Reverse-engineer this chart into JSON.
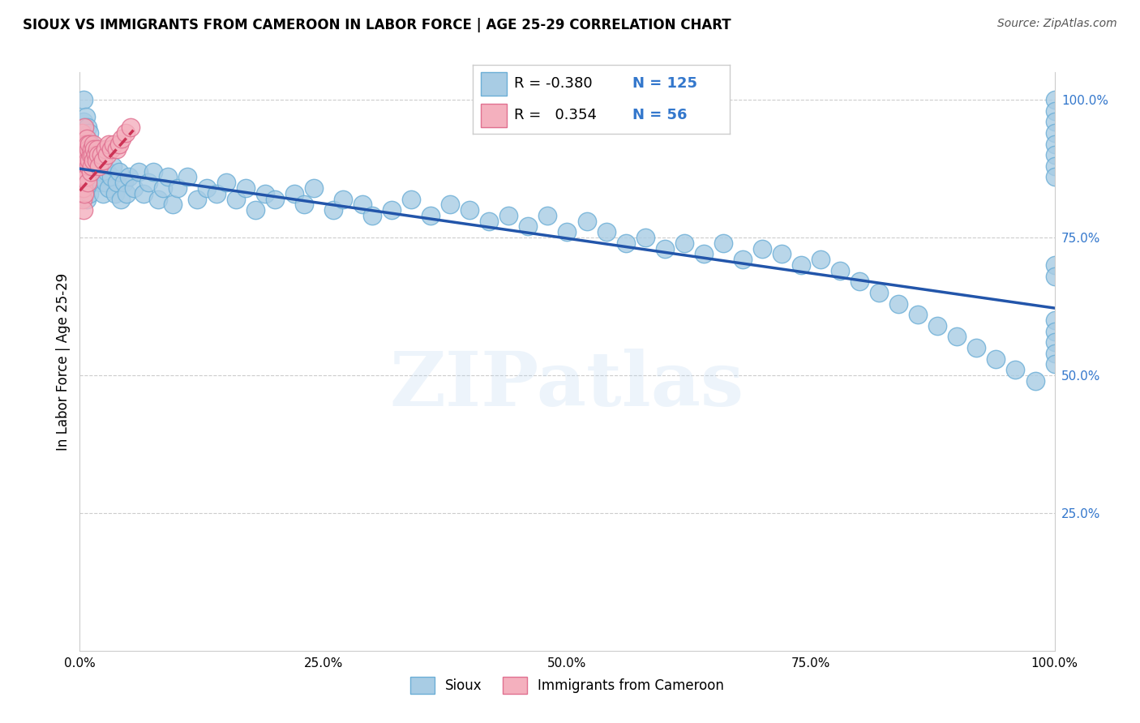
{
  "title": "SIOUX VS IMMIGRANTS FROM CAMEROON IN LABOR FORCE | AGE 25-29 CORRELATION CHART",
  "source": "Source: ZipAtlas.com",
  "ylabel": "In Labor Force | Age 25-29",
  "xlim": [
    0.0,
    1.0
  ],
  "ylim": [
    0.0,
    1.05
  ],
  "xtick_labels": [
    "0.0%",
    "25.0%",
    "50.0%",
    "75.0%",
    "100.0%"
  ],
  "xtick_vals": [
    0.0,
    0.25,
    0.5,
    0.75,
    1.0
  ],
  "ytick_labels_right": [
    "100.0%",
    "75.0%",
    "50.0%",
    "25.0%"
  ],
  "ytick_vals_right": [
    1.0,
    0.75,
    0.5,
    0.25
  ],
  "legend_label1": "Sioux",
  "legend_label2": "Immigrants from Cameroon",
  "r1": -0.38,
  "n1": 125,
  "r2": 0.354,
  "n2": 56,
  "blue_color": "#a8cce4",
  "blue_edge": "#6baed6",
  "pink_color": "#f4b0be",
  "pink_edge": "#e07090",
  "trendline1_color": "#2255aa",
  "trendline2_color": "#cc3355",
  "right_tick_color": "#3377cc",
  "grid_color": "#cccccc",
  "background_color": "#ffffff",
  "watermark_text": "ZIPatlas",
  "trendline1_y0": 0.875,
  "trendline1_y1": 0.622,
  "trendline2_x0": 0.0,
  "trendline2_x1": 0.055,
  "trendline2_y0": 0.835,
  "trendline2_y1": 0.945,
  "sioux_x": [
    0.002,
    0.003,
    0.004,
    0.004,
    0.005,
    0.005,
    0.005,
    0.006,
    0.006,
    0.007,
    0.007,
    0.007,
    0.008,
    0.008,
    0.009,
    0.009,
    0.01,
    0.01,
    0.01,
    0.011,
    0.011,
    0.012,
    0.012,
    0.013,
    0.014,
    0.014,
    0.015,
    0.016,
    0.017,
    0.018,
    0.019,
    0.02,
    0.021,
    0.022,
    0.023,
    0.024,
    0.025,
    0.026,
    0.028,
    0.03,
    0.032,
    0.034,
    0.036,
    0.038,
    0.04,
    0.042,
    0.045,
    0.048,
    0.05,
    0.055,
    0.06,
    0.065,
    0.07,
    0.075,
    0.08,
    0.085,
    0.09,
    0.095,
    0.1,
    0.11,
    0.12,
    0.13,
    0.14,
    0.15,
    0.16,
    0.17,
    0.18,
    0.19,
    0.2,
    0.22,
    0.23,
    0.24,
    0.26,
    0.27,
    0.29,
    0.3,
    0.32,
    0.34,
    0.36,
    0.38,
    0.4,
    0.42,
    0.44,
    0.46,
    0.48,
    0.5,
    0.52,
    0.54,
    0.56,
    0.58,
    0.6,
    0.62,
    0.64,
    0.66,
    0.68,
    0.7,
    0.72,
    0.74,
    0.76,
    0.78,
    0.8,
    0.82,
    0.84,
    0.86,
    0.88,
    0.9,
    0.92,
    0.94,
    0.96,
    0.98,
    1.0,
    1.0,
    1.0,
    1.0,
    1.0,
    1.0,
    1.0,
    1.0,
    1.0,
    1.0,
    1.0,
    1.0,
    1.0,
    1.0,
    1.0
  ],
  "sioux_y": [
    0.88,
    0.92,
    0.96,
    1.0,
    0.95,
    0.9,
    0.85,
    0.97,
    0.88,
    0.93,
    0.87,
    0.82,
    0.95,
    0.89,
    0.91,
    0.86,
    0.94,
    0.88,
    0.83,
    0.92,
    0.87,
    0.9,
    0.85,
    0.88,
    0.91,
    0.86,
    0.89,
    0.87,
    0.9,
    0.86,
    0.88,
    0.91,
    0.85,
    0.88,
    0.87,
    0.83,
    0.88,
    0.85,
    0.87,
    0.84,
    0.86,
    0.88,
    0.83,
    0.85,
    0.87,
    0.82,
    0.85,
    0.83,
    0.86,
    0.84,
    0.87,
    0.83,
    0.85,
    0.87,
    0.82,
    0.84,
    0.86,
    0.81,
    0.84,
    0.86,
    0.82,
    0.84,
    0.83,
    0.85,
    0.82,
    0.84,
    0.8,
    0.83,
    0.82,
    0.83,
    0.81,
    0.84,
    0.8,
    0.82,
    0.81,
    0.79,
    0.8,
    0.82,
    0.79,
    0.81,
    0.8,
    0.78,
    0.79,
    0.77,
    0.79,
    0.76,
    0.78,
    0.76,
    0.74,
    0.75,
    0.73,
    0.74,
    0.72,
    0.74,
    0.71,
    0.73,
    0.72,
    0.7,
    0.71,
    0.69,
    0.67,
    0.65,
    0.63,
    0.61,
    0.59,
    0.57,
    0.55,
    0.53,
    0.51,
    0.49,
    1.0,
    0.98,
    0.96,
    0.94,
    0.92,
    0.9,
    0.88,
    0.86,
    0.7,
    0.68,
    0.6,
    0.58,
    0.56,
    0.54,
    0.52
  ],
  "cameroon_x": [
    0.001,
    0.001,
    0.002,
    0.002,
    0.002,
    0.003,
    0.003,
    0.003,
    0.003,
    0.004,
    0.004,
    0.004,
    0.004,
    0.005,
    0.005,
    0.005,
    0.005,
    0.005,
    0.006,
    0.006,
    0.006,
    0.007,
    0.007,
    0.007,
    0.008,
    0.008,
    0.008,
    0.009,
    0.009,
    0.01,
    0.01,
    0.011,
    0.011,
    0.012,
    0.012,
    0.013,
    0.014,
    0.014,
    0.015,
    0.016,
    0.017,
    0.018,
    0.019,
    0.02,
    0.022,
    0.024,
    0.026,
    0.028,
    0.03,
    0.032,
    0.035,
    0.038,
    0.04,
    0.043,
    0.047,
    0.052
  ],
  "cameroon_y": [
    0.88,
    0.92,
    0.9,
    0.94,
    0.85,
    0.91,
    0.88,
    0.85,
    0.82,
    0.9,
    0.87,
    0.84,
    0.8,
    0.95,
    0.92,
    0.89,
    0.86,
    0.83,
    0.92,
    0.89,
    0.86,
    0.93,
    0.9,
    0.86,
    0.92,
    0.89,
    0.85,
    0.91,
    0.88,
    0.92,
    0.89,
    0.9,
    0.87,
    0.91,
    0.88,
    0.9,
    0.89,
    0.92,
    0.91,
    0.9,
    0.89,
    0.91,
    0.9,
    0.88,
    0.9,
    0.89,
    0.91,
    0.9,
    0.92,
    0.91,
    0.92,
    0.91,
    0.92,
    0.93,
    0.94,
    0.95
  ]
}
